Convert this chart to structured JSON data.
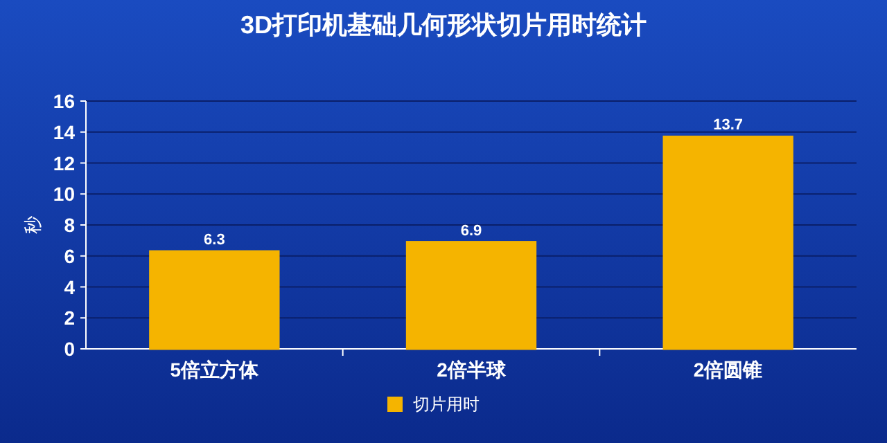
{
  "chart_data": {
    "type": "bar",
    "title": "3D打印机基础几何形状切片用时统计",
    "ylabel": "秒",
    "categories": [
      "5倍立方体",
      "2倍半球",
      "2倍圆锥"
    ],
    "series": [
      {
        "name": "切片用时",
        "color": "#f5b400",
        "values": [
          6.3,
          6.9,
          13.7
        ]
      }
    ],
    "ylim": [
      0,
      16
    ],
    "yticks": [
      0,
      2,
      4,
      6,
      8,
      10,
      12,
      14,
      16
    ],
    "grid": "y",
    "legend": "bottom",
    "data_labels": true
  }
}
